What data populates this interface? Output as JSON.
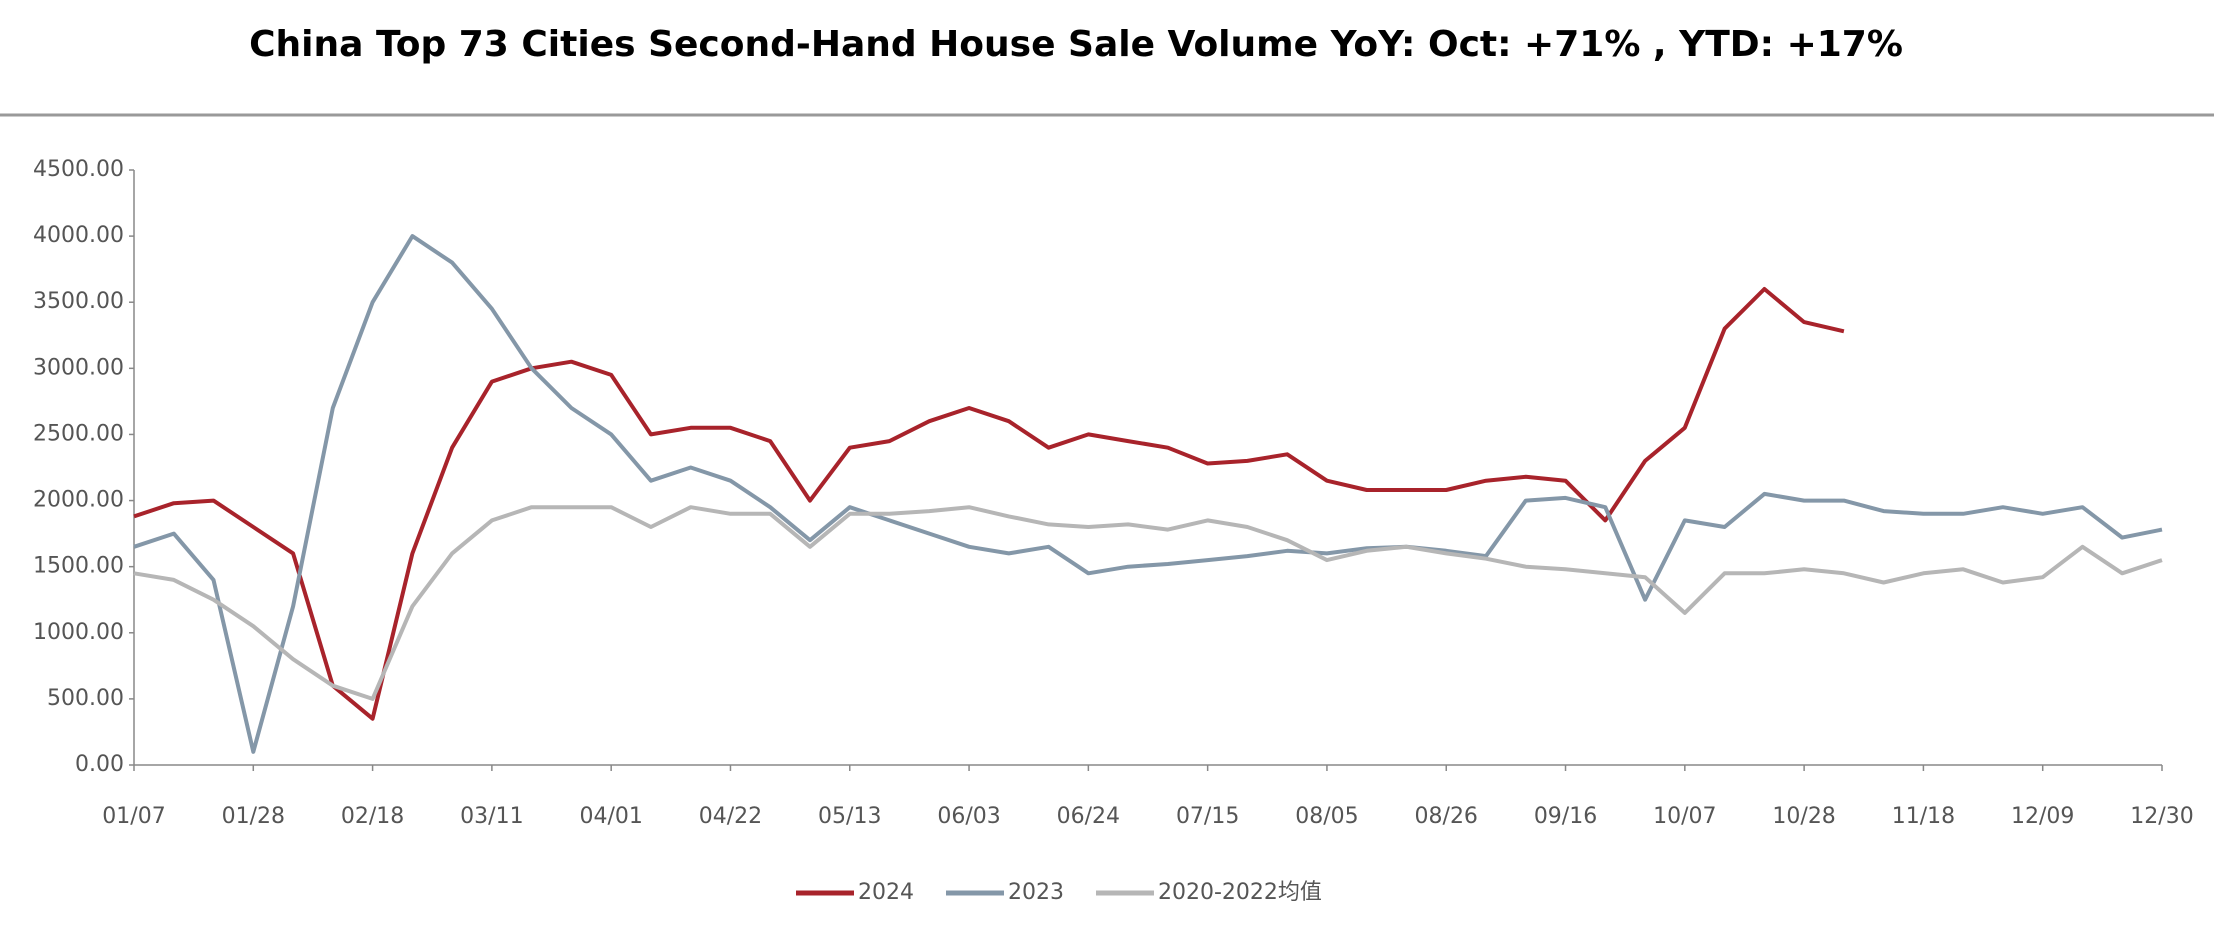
{
  "chart_data": {
    "type": "line",
    "title": "China Top 73 Cities Second-Hand House Sale Volume YoY: Oct: +71% , YTD: +17%",
    "categories": [
      "01/07",
      null,
      null,
      "01/28",
      null,
      null,
      "02/18",
      null,
      null,
      "03/11",
      null,
      null,
      "04/01",
      null,
      null,
      "04/22",
      null,
      null,
      "05/13",
      null,
      null,
      "06/03",
      null,
      null,
      "06/24",
      null,
      null,
      "07/15",
      null,
      null,
      "08/05",
      null,
      null,
      "08/26",
      null,
      null,
      "09/16",
      null,
      null,
      "10/07",
      null,
      null,
      "10/28",
      null,
      null,
      "11/18",
      null,
      null,
      "12/09",
      null,
      null,
      "12/30"
    ],
    "series": [
      {
        "name": "2024",
        "color": "#a8232b",
        "values": [
          1880,
          1980,
          2000,
          1800,
          1600,
          600,
          350,
          1600,
          2400,
          2900,
          3000,
          3050,
          2950,
          2500,
          2550,
          2550,
          2450,
          2000,
          2400,
          2450,
          2600,
          2700,
          2600,
          2400,
          2500,
          2450,
          2400,
          2280,
          2300,
          2350,
          2150,
          2080,
          2080,
          2080,
          2150,
          2180,
          2150,
          1850,
          2300,
          2550,
          3300,
          3600,
          3350,
          3280,
          null,
          null,
          null,
          null,
          null,
          null,
          null,
          null
        ]
      },
      {
        "name": "2023",
        "color": "#8497a8",
        "values": [
          1650,
          1750,
          1400,
          100,
          1200,
          2700,
          3500,
          4000,
          3800,
          3450,
          3000,
          2700,
          2500,
          2150,
          2250,
          2150,
          1950,
          1700,
          1950,
          1850,
          1750,
          1650,
          1600,
          1650,
          1450,
          1500,
          1520,
          1550,
          1580,
          1620,
          1600,
          1640,
          1650,
          1620,
          1580,
          2000,
          2020,
          1950,
          1250,
          1850,
          1800,
          2050,
          2000,
          2000,
          1920,
          1900,
          1900,
          1950,
          1900,
          1950,
          1720,
          1780
        ]
      },
      {
        "name": "2020-2022均值",
        "color": "#b6b6b6",
        "values": [
          1450,
          1400,
          1250,
          1050,
          800,
          600,
          500,
          1200,
          1600,
          1850,
          1950,
          1950,
          1950,
          1800,
          1950,
          1900,
          1900,
          1650,
          1900,
          1900,
          1920,
          1950,
          1880,
          1820,
          1800,
          1820,
          1780,
          1850,
          1800,
          1700,
          1550,
          1620,
          1650,
          1600,
          1560,
          1500,
          1480,
          1450,
          1420,
          1150,
          1450,
          1450,
          1480,
          1450,
          1380,
          1450,
          1480,
          1380,
          1420,
          1650,
          1450,
          1550
        ]
      }
    ],
    "ylim": [
      0,
      4500
    ],
    "yticks": [
      {
        "value": 0,
        "label": "0.00"
      },
      {
        "value": 500,
        "label": "500.00"
      },
      {
        "value": 1000,
        "label": "1000.00"
      },
      {
        "value": 1500,
        "label": "1500.00"
      },
      {
        "value": 2000,
        "label": "2000.00"
      },
      {
        "value": 2500,
        "label": "2500.00"
      },
      {
        "value": 3000,
        "label": "3000.00"
      },
      {
        "value": 3500,
        "label": "3500.00"
      },
      {
        "value": 4000,
        "label": "4000.00"
      },
      {
        "value": 4500,
        "label": "4500.00"
      }
    ],
    "grid": false,
    "legend": "bottom"
  }
}
